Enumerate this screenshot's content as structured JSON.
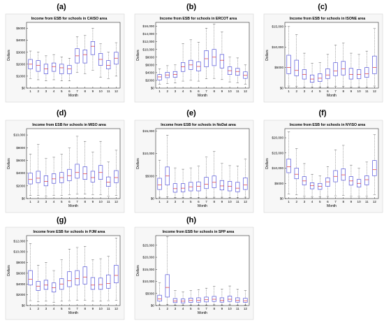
{
  "chart_data": [
    {
      "panel": "(a)",
      "type": "box",
      "title": "Income from ESB for schools in CAISO area",
      "xlabel": "Month",
      "ylabel": "Dollars",
      "categories": [
        "1",
        "2",
        "3",
        "4",
        "5",
        "6",
        "7",
        "8",
        "9",
        "10",
        "11",
        "12"
      ],
      "yticks": [
        "$0",
        "$1000",
        "$2000",
        "$3000",
        "$4000",
        "$5000"
      ],
      "ylim": [
        0,
        5500
      ],
      "tickvals": [
        0,
        1000,
        2000,
        3000,
        4000,
        5000
      ],
      "boxes": [
        {
          "min": 800,
          "q1": 1600,
          "median": 2000,
          "q3": 2400,
          "max": 3100
        },
        {
          "min": 700,
          "q1": 1400,
          "median": 1900,
          "q3": 2300,
          "max": 3000
        },
        {
          "min": 600,
          "q1": 1200,
          "median": 1600,
          "q3": 2000,
          "max": 2700
        },
        {
          "min": 700,
          "q1": 1400,
          "median": 1800,
          "q3": 2100,
          "max": 2800
        },
        {
          "min": 600,
          "q1": 1200,
          "median": 1700,
          "q3": 2000,
          "max": 2600
        },
        {
          "min": 600,
          "q1": 1200,
          "median": 1600,
          "q3": 1900,
          "max": 2500
        },
        {
          "min": 1300,
          "q1": 2100,
          "median": 2700,
          "q3": 3300,
          "max": 4300
        },
        {
          "min": 1200,
          "q1": 2100,
          "median": 2800,
          "q3": 3200,
          "max": 4400
        },
        {
          "min": 1500,
          "q1": 2800,
          "median": 3500,
          "q3": 3900,
          "max": 5000
        },
        {
          "min": 900,
          "q1": 1900,
          "median": 2400,
          "q3": 2900,
          "max": 3700
        },
        {
          "min": 800,
          "q1": 1600,
          "median": 1900,
          "q3": 2300,
          "max": 3000
        },
        {
          "min": 1000,
          "q1": 2000,
          "median": 2500,
          "q3": 3000,
          "max": 3800
        }
      ]
    },
    {
      "panel": "(b)",
      "type": "box",
      "title": "Income from ESB for schools in ERCOT area",
      "xlabel": "Month",
      "ylabel": "Dollars",
      "categories": [
        "1",
        "2",
        "3",
        "4",
        "5",
        "6",
        "7",
        "8",
        "9",
        "10",
        "11",
        "12"
      ],
      "yticks": [
        "$0",
        "$2000",
        "$4000",
        "$6000",
        "$8000",
        "$10,000",
        "$12,000",
        "$14,000",
        "$16,000"
      ],
      "ylim": [
        0,
        17000
      ],
      "tickvals": [
        0,
        2000,
        4000,
        6000,
        8000,
        10000,
        12000,
        14000,
        16000
      ],
      "boxes": [
        {
          "min": 1000,
          "q1": 2100,
          "median": 2900,
          "q3": 3500,
          "max": 5000
        },
        {
          "min": 1200,
          "q1": 2700,
          "median": 3400,
          "q3": 4100,
          "max": 5800
        },
        {
          "min": 1300,
          "q1": 2800,
          "median": 3500,
          "q3": 4300,
          "max": 6000
        },
        {
          "min": 1800,
          "q1": 4300,
          "median": 5500,
          "q3": 6600,
          "max": 11500
        },
        {
          "min": 2000,
          "q1": 4800,
          "median": 6000,
          "q3": 7200,
          "max": 12500
        },
        {
          "min": 1800,
          "q1": 4400,
          "median": 5600,
          "q3": 6800,
          "max": 11800
        },
        {
          "min": 2400,
          "q1": 5500,
          "median": 7600,
          "q3": 9700,
          "max": 15500
        },
        {
          "min": 2500,
          "q1": 5800,
          "median": 8000,
          "q3": 10000,
          "max": 16600
        },
        {
          "min": 2200,
          "q1": 5200,
          "median": 7200,
          "q3": 8700,
          "max": 14500
        },
        {
          "min": 1600,
          "q1": 3500,
          "median": 4500,
          "q3": 5500,
          "max": 8000
        },
        {
          "min": 1400,
          "q1": 3300,
          "median": 4300,
          "q3": 5100,
          "max": 7800
        },
        {
          "min": 1000,
          "q1": 2500,
          "median": 3300,
          "q3": 4200,
          "max": 6000
        }
      ]
    },
    {
      "panel": "(c)",
      "type": "box",
      "title": "Income from ESB for schools in ISONE area",
      "xlabel": "Month",
      "ylabel": "Dollars",
      "categories": [
        "1",
        "2",
        "3",
        "4",
        "5",
        "6",
        "7",
        "8",
        "9",
        "10",
        "11",
        "12"
      ],
      "yticks": [
        "$0",
        "$5000",
        "$10,000",
        "$15,000"
      ],
      "ylim": [
        0,
        16000
      ],
      "tickvals": [
        0,
        5000,
        10000,
        15000
      ],
      "boxes": [
        {
          "min": 500,
          "q1": 3500,
          "median": 5000,
          "q3": 8000,
          "max": 15000
        },
        {
          "min": 400,
          "q1": 3000,
          "median": 4300,
          "q3": 6800,
          "max": 13000
        },
        {
          "min": 300,
          "q1": 2200,
          "median": 3300,
          "q3": 4500,
          "max": 8500
        },
        {
          "min": 200,
          "q1": 1400,
          "median": 2200,
          "q3": 3200,
          "max": 6000
        },
        {
          "min": 200,
          "q1": 1600,
          "median": 2400,
          "q3": 3500,
          "max": 6200
        },
        {
          "min": 300,
          "q1": 2300,
          "median": 3200,
          "q3": 4700,
          "max": 8200
        },
        {
          "min": 400,
          "q1": 3000,
          "median": 4200,
          "q3": 6200,
          "max": 10500
        },
        {
          "min": 400,
          "q1": 3200,
          "median": 4700,
          "q3": 6500,
          "max": 11000
        },
        {
          "min": 300,
          "q1": 2200,
          "median": 3300,
          "q3": 4800,
          "max": 8500
        },
        {
          "min": 300,
          "q1": 2300,
          "median": 3300,
          "q3": 4500,
          "max": 8200
        },
        {
          "min": 300,
          "q1": 2600,
          "median": 3500,
          "q3": 5000,
          "max": 9000
        },
        {
          "min": 500,
          "q1": 3500,
          "median": 5000,
          "q3": 7800,
          "max": 14500
        }
      ]
    },
    {
      "panel": "(d)",
      "type": "box",
      "title": "Income from ESB for schools in MISO area",
      "xlabel": "Month",
      "ylabel": "Dollars",
      "categories": [
        "1",
        "2",
        "3",
        "4",
        "5",
        "6",
        "7",
        "8",
        "9",
        "10",
        "11",
        "12"
      ],
      "yticks": [
        "$0",
        "$2000",
        "$4000",
        "$6000",
        "$8000",
        "$10,000"
      ],
      "ylim": [
        0,
        11000
      ],
      "tickvals": [
        0,
        2000,
        4000,
        6000,
        8000,
        10000
      ],
      "boxes": [
        {
          "min": 500,
          "q1": 2300,
          "median": 3000,
          "q3": 4000,
          "max": 7000
        },
        {
          "min": 500,
          "q1": 2500,
          "median": 3200,
          "q3": 4300,
          "max": 8500
        },
        {
          "min": 400,
          "q1": 2000,
          "median": 2700,
          "q3": 3600,
          "max": 6300
        },
        {
          "min": 500,
          "q1": 2400,
          "median": 3100,
          "q3": 3900,
          "max": 6500
        },
        {
          "min": 500,
          "q1": 2500,
          "median": 3300,
          "q3": 4100,
          "max": 7000
        },
        {
          "min": 600,
          "q1": 2800,
          "median": 3600,
          "q3": 4600,
          "max": 8000
        },
        {
          "min": 700,
          "q1": 3200,
          "median": 4100,
          "q3": 5400,
          "max": 9800
        },
        {
          "min": 700,
          "q1": 3000,
          "median": 3900,
          "q3": 5000,
          "max": 9000
        },
        {
          "min": 600,
          "q1": 2600,
          "median": 3300,
          "q3": 4300,
          "max": 7300
        },
        {
          "min": 600,
          "q1": 3000,
          "median": 4100,
          "q3": 5200,
          "max": 9000
        },
        {
          "min": 400,
          "q1": 1900,
          "median": 2600,
          "q3": 3400,
          "max": 5800
        },
        {
          "min": 500,
          "q1": 2500,
          "median": 3300,
          "q3": 4400,
          "max": 7600
        }
      ]
    },
    {
      "panel": "(e)",
      "type": "box",
      "title": "Income from ESB for schools in NoDat area",
      "xlabel": "Month",
      "ylabel": "Dollars",
      "categories": [
        "1",
        "2",
        "3",
        "4",
        "5",
        "6",
        "7",
        "8",
        "9",
        "10",
        "11",
        "12"
      ],
      "yticks": [
        "$0",
        "$5000",
        "$10,000",
        "$15,000"
      ],
      "ylim": [
        0,
        15500
      ],
      "tickvals": [
        0,
        5000,
        10000,
        15000
      ],
      "boxes": [
        {
          "min": 300,
          "q1": 2000,
          "median": 3000,
          "q3": 4500,
          "max": 8500
        },
        {
          "min": 400,
          "q1": 3000,
          "median": 5000,
          "q3": 7000,
          "max": 14000
        },
        {
          "min": 200,
          "q1": 1400,
          "median": 2200,
          "q3": 3300,
          "max": 6800
        },
        {
          "min": 200,
          "q1": 1500,
          "median": 2300,
          "q3": 3300,
          "max": 6500
        },
        {
          "min": 200,
          "q1": 1700,
          "median": 2600,
          "q3": 3600,
          "max": 6800
        },
        {
          "min": 200,
          "q1": 1700,
          "median": 2700,
          "q3": 3700,
          "max": 7200
        },
        {
          "min": 300,
          "q1": 2200,
          "median": 3200,
          "q3": 4700,
          "max": 9200
        },
        {
          "min": 300,
          "q1": 2400,
          "median": 3600,
          "q3": 5000,
          "max": 10500
        },
        {
          "min": 300,
          "q1": 1900,
          "median": 2800,
          "q3": 4000,
          "max": 7800
        },
        {
          "min": 200,
          "q1": 1700,
          "median": 2700,
          "q3": 3800,
          "max": 7300
        },
        {
          "min": 200,
          "q1": 1500,
          "median": 2300,
          "q3": 3600,
          "max": 7200
        },
        {
          "min": 300,
          "q1": 2000,
          "median": 3000,
          "q3": 4600,
          "max": 8800
        }
      ]
    },
    {
      "panel": "(f)",
      "type": "box",
      "title": "Income from ESB for schools in NYISO area",
      "xlabel": "Month",
      "ylabel": "Dollars",
      "categories": [
        "1",
        "2",
        "3",
        "4",
        "5",
        "6",
        "7",
        "8",
        "9",
        "10",
        "11",
        "12"
      ],
      "yticks": [
        "$0",
        "$5000",
        "$10,000",
        "$15,000",
        "$20,000"
      ],
      "ylim": [
        0,
        23000
      ],
      "tickvals": [
        0,
        5000,
        10000,
        15000,
        20000
      ],
      "boxes": [
        {
          "min": 1500,
          "q1": 8500,
          "median": 10500,
          "q3": 13000,
          "max": 22000
        },
        {
          "min": 1200,
          "q1": 6500,
          "median": 8000,
          "q3": 10000,
          "max": 16500
        },
        {
          "min": 800,
          "q1": 4500,
          "median": 5800,
          "q3": 7200,
          "max": 11500
        },
        {
          "min": 600,
          "q1": 3200,
          "median": 4300,
          "q3": 5200,
          "max": 8000
        },
        {
          "min": 600,
          "q1": 3000,
          "median": 4000,
          "q3": 5000,
          "max": 7500
        },
        {
          "min": 700,
          "q1": 4000,
          "median": 5500,
          "q3": 6800,
          "max": 10500
        },
        {
          "min": 900,
          "q1": 5500,
          "median": 7300,
          "q3": 9200,
          "max": 16000
        },
        {
          "min": 1000,
          "q1": 6000,
          "median": 7800,
          "q3": 9800,
          "max": 17500
        },
        {
          "min": 800,
          "q1": 4400,
          "median": 5800,
          "q3": 7200,
          "max": 11000
        },
        {
          "min": 700,
          "q1": 3800,
          "median": 5000,
          "q3": 6300,
          "max": 10000
        },
        {
          "min": 800,
          "q1": 4500,
          "median": 6200,
          "q3": 7500,
          "max": 12000
        },
        {
          "min": 1300,
          "q1": 7500,
          "median": 9500,
          "q3": 12500,
          "max": 21000
        }
      ]
    },
    {
      "panel": "(g)",
      "type": "box",
      "title": "Income from ESB for schools in PJM area",
      "xlabel": "Month",
      "ylabel": "Dollars",
      "categories": [
        "1",
        "2",
        "3",
        "4",
        "5",
        "6",
        "7",
        "8",
        "9",
        "10",
        "11",
        "12"
      ],
      "yticks": [
        "$0",
        "$2000",
        "$4000",
        "$6000",
        "$8000",
        "$10,000",
        "$12,000"
      ],
      "ylim": [
        0,
        13000
      ],
      "tickvals": [
        0,
        2000,
        4000,
        6000,
        8000,
        10000,
        12000
      ],
      "boxes": [
        {
          "min": 900,
          "q1": 3800,
          "median": 4900,
          "q3": 6500,
          "max": 11500
        },
        {
          "min": 700,
          "q1": 2800,
          "median": 3600,
          "q3": 4500,
          "max": 7500
        },
        {
          "min": 800,
          "q1": 3000,
          "median": 3800,
          "q3": 4700,
          "max": 8000
        },
        {
          "min": 600,
          "q1": 2500,
          "median": 3300,
          "q3": 4200,
          "max": 6500
        },
        {
          "min": 800,
          "q1": 3000,
          "median": 4000,
          "q3": 5000,
          "max": 8500
        },
        {
          "min": 900,
          "q1": 3500,
          "median": 4600,
          "q3": 6300,
          "max": 10500
        },
        {
          "min": 1000,
          "q1": 3800,
          "median": 5000,
          "q3": 6500,
          "max": 10800
        },
        {
          "min": 1000,
          "q1": 4000,
          "median": 5300,
          "q3": 7200,
          "max": 11000
        },
        {
          "min": 800,
          "q1": 3000,
          "median": 3800,
          "q3": 5200,
          "max": 8500
        },
        {
          "min": 800,
          "q1": 3000,
          "median": 3900,
          "q3": 5100,
          "max": 8700
        },
        {
          "min": 900,
          "q1": 3200,
          "median": 4100,
          "q3": 5700,
          "max": 9200
        },
        {
          "min": 1000,
          "q1": 4200,
          "median": 5600,
          "q3": 7500,
          "max": 12500
        }
      ]
    },
    {
      "panel": "(h)",
      "type": "box",
      "title": "Income from ESB for schools in SPP area",
      "xlabel": "Month",
      "ylabel": "Dollars",
      "categories": [
        "1",
        "2",
        "3",
        "4",
        "5",
        "6",
        "7",
        "8",
        "9",
        "10",
        "11",
        "12"
      ],
      "yticks": [
        "$0",
        "$5000",
        "$10,000",
        "$15,000",
        "$20,000",
        "$25,000"
      ],
      "ylim": [
        0,
        29000
      ],
      "tickvals": [
        0,
        5000,
        10000,
        15000,
        20000,
        25000
      ],
      "boxes": [
        {
          "min": 300,
          "q1": 1800,
          "median": 2700,
          "q3": 4300,
          "max": 9500
        },
        {
          "min": 500,
          "q1": 3500,
          "median": 7500,
          "q3": 12800,
          "max": 28500
        },
        {
          "min": 200,
          "q1": 1200,
          "median": 1900,
          "q3": 2900,
          "max": 6200
        },
        {
          "min": 200,
          "q1": 1100,
          "median": 1800,
          "q3": 2700,
          "max": 5600
        },
        {
          "min": 200,
          "q1": 1300,
          "median": 2100,
          "q3": 3100,
          "max": 6200
        },
        {
          "min": 200,
          "q1": 1400,
          "median": 2200,
          "q3": 3200,
          "max": 6600
        },
        {
          "min": 200,
          "q1": 1500,
          "median": 2400,
          "q3": 3500,
          "max": 7200
        },
        {
          "min": 300,
          "q1": 1700,
          "median": 2600,
          "q3": 3800,
          "max": 7900
        },
        {
          "min": 200,
          "q1": 1400,
          "median": 2100,
          "q3": 3200,
          "max": 6800
        },
        {
          "min": 300,
          "q1": 1700,
          "median": 2600,
          "q3": 3900,
          "max": 8100
        },
        {
          "min": 200,
          "q1": 1400,
          "median": 2100,
          "q3": 3200,
          "max": 6700
        },
        {
          "min": 200,
          "q1": 1300,
          "median": 2000,
          "q3": 3000,
          "max": 6300
        }
      ]
    }
  ],
  "colors": {
    "box": "#3b3bd6",
    "median": "#e03030",
    "whisker": "#333333",
    "frame": "#000000",
    "grid": "#dddddd"
  }
}
